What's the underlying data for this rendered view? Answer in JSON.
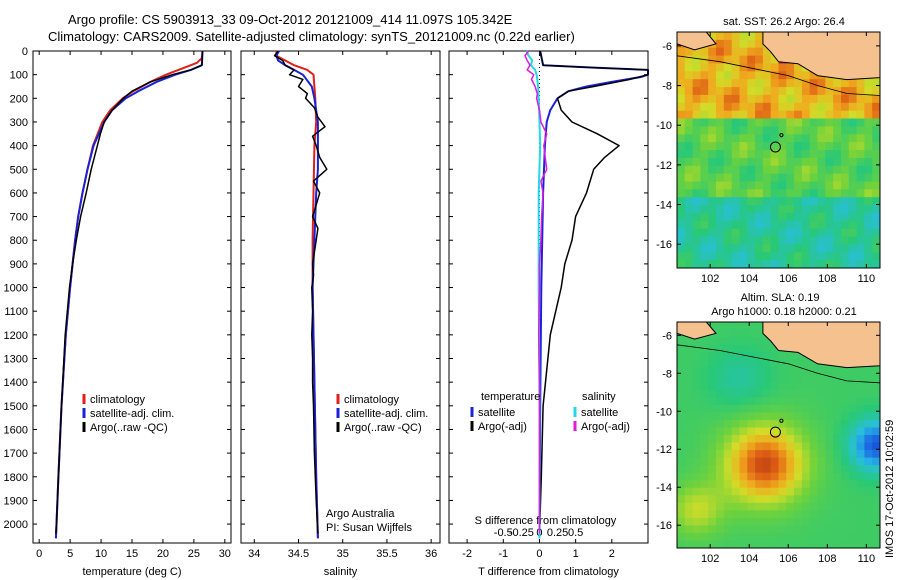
{
  "title_line1": "Argo profile: CS 5903913_33 09-Oct-2012 20121009_414 11.097S 105.342E",
  "title_line2": "Climatology: CARS2009. Satellite-adjusted climatology: synTS_20121009.nc (0.22d earlier)",
  "watermark": "IMOS 17-Oct-2012 10:02:59",
  "colors": {
    "climatology": "#e0201a",
    "satellite": "#1a22d8",
    "argo": "#000000",
    "temp_sat": "#1a22d8",
    "sal_sat": "#22d8e8",
    "sal_argo": "#e01ae0"
  },
  "chart_data": [
    {
      "type": "line",
      "id": "temperature",
      "xlabel": "temperature (deg C)",
      "ylabel": "",
      "xlim": [
        -1,
        31
      ],
      "ylim": [
        2080,
        0
      ],
      "x_ticks": [
        "0",
        "5",
        "10",
        "15",
        "20",
        "25",
        "30"
      ],
      "y_ticks": [
        "0",
        "100",
        "200",
        "300",
        "400",
        "500",
        "600",
        "700",
        "800",
        "900",
        "1000",
        "1100",
        "1200",
        "1300",
        "1400",
        "1500",
        "1600",
        "1700",
        "1800",
        "1900",
        "2000"
      ],
      "legend": [
        "climatology",
        "satellite-adj. clim.",
        "Argo(..raw -QC)"
      ],
      "series": [
        {
          "name": "climatology",
          "depth": [
            0,
            30,
            50,
            80,
            100,
            130,
            170,
            200,
            250,
            300,
            400,
            500,
            600,
            700,
            800,
            1000,
            1200,
            1500,
            1800,
            2000,
            2060
          ],
          "values": [
            26.4,
            26.3,
            25.5,
            22.5,
            20.5,
            18.0,
            15.2,
            13.5,
            11.5,
            10.2,
            8.7,
            7.8,
            7.0,
            6.3,
            5.8,
            5.0,
            4.3,
            3.6,
            3.1,
            2.8,
            2.7
          ]
        },
        {
          "name": "satellite-adj. clim.",
          "depth": [
            0,
            60,
            80,
            100,
            130,
            170,
            200,
            250,
            300,
            400,
            500,
            600,
            700,
            800,
            1000,
            1200,
            1500,
            1800,
            2000,
            2060
          ],
          "values": [
            26.4,
            26.3,
            24.5,
            22.0,
            19.0,
            16.0,
            14.0,
            11.8,
            10.5,
            8.8,
            7.8,
            7.0,
            6.3,
            5.8,
            5.0,
            4.3,
            3.6,
            3.1,
            2.8,
            2.7
          ]
        },
        {
          "name": "Argo(..raw -QC)",
          "depth": [
            0,
            60,
            80,
            100,
            130,
            170,
            200,
            250,
            300,
            350,
            400,
            450,
            500,
            600,
            700,
            800,
            900,
            1000,
            1200,
            1500,
            1800,
            2000,
            2040
          ],
          "values": [
            26.4,
            26.3,
            24.5,
            21.5,
            18.0,
            15.0,
            13.6,
            11.8,
            10.5,
            9.9,
            9.4,
            8.9,
            8.4,
            7.6,
            6.7,
            6.0,
            5.4,
            4.9,
            4.2,
            3.6,
            3.1,
            2.8,
            2.7
          ]
        }
      ]
    },
    {
      "type": "line",
      "id": "salinity",
      "xlabel": "salinity",
      "ylabel": "",
      "xlim": [
        33.85,
        36.1
      ],
      "ylim": [
        2080,
        0
      ],
      "x_ticks": [
        "34",
        "34.5",
        "35",
        "35.5",
        "36"
      ],
      "legend": [
        "climatology",
        "satellite-adj. clim.",
        "Argo(..raw -QC)"
      ],
      "annotation": [
        "Argo Australia",
        "PI: Susan Wijffels"
      ],
      "series": [
        {
          "name": "climatology",
          "depth": [
            0,
            20,
            40,
            60,
            80,
            100,
            150,
            200,
            300,
            400,
            600,
            800,
            1000,
            1400,
            1800,
            2060
          ],
          "values": [
            34.25,
            34.25,
            34.35,
            34.45,
            34.6,
            34.67,
            34.68,
            34.69,
            34.7,
            34.68,
            34.67,
            34.66,
            34.66,
            34.68,
            34.7,
            34.72
          ]
        },
        {
          "name": "satellite-adj. clim.",
          "depth": [
            0,
            20,
            40,
            60,
            80,
            100,
            150,
            200,
            300,
            400,
            500,
            600,
            800,
            1000,
            1400,
            1800,
            2060
          ],
          "values": [
            34.28,
            34.25,
            34.27,
            34.35,
            34.45,
            34.55,
            34.65,
            34.68,
            34.72,
            34.72,
            34.72,
            34.7,
            34.68,
            34.66,
            34.68,
            34.7,
            34.72
          ]
        },
        {
          "name": "Argo(..raw -QC)",
          "depth": [
            0,
            20,
            40,
            60,
            80,
            100,
            120,
            150,
            180,
            200,
            240,
            280,
            320,
            360,
            400,
            450,
            500,
            550,
            600,
            650,
            700,
            750,
            800,
            850,
            900,
            950,
            1000,
            1100,
            1200,
            1300,
            1400,
            1500,
            1700,
            1900,
            2040
          ],
          "values": [
            34.27,
            34.23,
            34.32,
            34.35,
            34.45,
            34.4,
            34.55,
            34.5,
            34.6,
            34.58,
            34.68,
            34.72,
            34.8,
            34.66,
            34.7,
            34.74,
            34.82,
            34.67,
            34.74,
            34.7,
            34.66,
            34.72,
            34.7,
            34.68,
            34.66,
            34.67,
            34.65,
            34.66,
            34.65,
            34.66,
            34.66,
            34.67,
            34.68,
            34.7,
            34.72
          ]
        }
      ]
    },
    {
      "type": "line",
      "id": "difference",
      "xlabel": "T difference from climatology",
      "xlabel_top": "S difference from climatology",
      "xlim": [
        -2.5,
        3
      ],
      "ylim": [
        2080,
        0
      ],
      "x_ticks": [
        "-2",
        "-1",
        "0",
        "1",
        "2"
      ],
      "s_ticks": [
        "-0.5",
        "-0.25",
        "0",
        "0.25",
        "0.5"
      ],
      "legend_temperature_title": "temperature",
      "legend_salinity_title": "salinity",
      "legend": [
        "satellite",
        "Argo(-adj)",
        "satellite",
        "Argo(-adj)"
      ],
      "series": [
        {
          "name": "temperature satellite",
          "depth": [
            0,
            60,
            70,
            80,
            90,
            100,
            110,
            130,
            150,
            170,
            200,
            250,
            300,
            400,
            600,
            1000,
            1500,
            2060
          ],
          "values": [
            0.02,
            0.1,
            1.5,
            3.0,
            3.0,
            3.0,
            2.8,
            2.0,
            1.3,
            0.8,
            0.5,
            0.3,
            0.2,
            0.15,
            0.1,
            0.05,
            0.02,
            0.0
          ]
        },
        {
          "name": "temperature Argo(-adj)",
          "depth": [
            0,
            60,
            70,
            80,
            90,
            100,
            120,
            150,
            170,
            200,
            250,
            300,
            350,
            400,
            450,
            500,
            600,
            700,
            800,
            900,
            1000,
            1200,
            1500,
            1800,
            2040
          ],
          "values": [
            0.02,
            0.1,
            1.5,
            3.0,
            3.0,
            3.0,
            2.5,
            1.5,
            0.8,
            0.5,
            0.6,
            0.9,
            1.6,
            2.2,
            1.8,
            1.5,
            1.3,
            1.0,
            0.9,
            0.7,
            0.6,
            0.3,
            0.1,
            0.05,
            0.0
          ]
        },
        {
          "name": "salinity satellite",
          "depth": [
            0,
            20,
            40,
            60,
            80,
            100,
            120,
            150,
            200,
            300,
            400,
            600,
            800,
            1000,
            1500,
            2060
          ],
          "values": [
            -0.18,
            -0.15,
            -0.1,
            -0.12,
            -0.06,
            -0.04,
            -0.03,
            -0.02,
            -0.01,
            0.0,
            0.01,
            -0.01,
            -0.01,
            -0.01,
            0.0,
            0.0
          ]
        },
        {
          "name": "salinity Argo(-adj)",
          "depth": [
            0,
            20,
            40,
            60,
            80,
            100,
            120,
            150,
            180,
            200,
            250,
            300,
            350,
            400,
            450,
            500,
            550,
            600,
            700,
            800,
            900,
            1000,
            1200,
            1400,
            1500,
            1700,
            2040
          ],
          "values": [
            -0.15,
            -0.2,
            -0.17,
            -0.13,
            -0.17,
            -0.08,
            -0.11,
            -0.06,
            -0.03,
            -0.04,
            0.0,
            0.02,
            0.1,
            0.06,
            0.08,
            0.1,
            0.02,
            0.05,
            0.03,
            0.02,
            0.0,
            0.0,
            -0.01,
            0.0,
            0.0,
            0.0,
            0.0
          ]
        }
      ]
    },
    {
      "type": "heatmap",
      "id": "sst_map",
      "title": "sat. SST: 26.2  Argo: 26.4",
      "x_ticks": [
        "102",
        "104",
        "106",
        "108",
        "110"
      ],
      "y_ticks": [
        "-6",
        "-8",
        "-10",
        "-12",
        "-14",
        "-16"
      ],
      "xlim": [
        100.3,
        110.7
      ],
      "ylim": [
        -17.2,
        -5.3
      ],
      "argo_position": {
        "lon": 105.342,
        "lat": -11.097
      }
    },
    {
      "type": "heatmap",
      "id": "sla_map",
      "title": "Altim. SLA: 0.19",
      "subtitle": "Argo h1000: 0.18  h2000: 0.21",
      "x_ticks": [
        "102",
        "104",
        "106",
        "108",
        "110"
      ],
      "y_ticks": [
        "-6",
        "-8",
        "-10",
        "-12",
        "-14",
        "-16"
      ],
      "xlim": [
        100.3,
        110.7
      ],
      "ylim": [
        -17.2,
        -5.3
      ],
      "argo_position": {
        "lon": 105.342,
        "lat": -11.097
      }
    }
  ]
}
